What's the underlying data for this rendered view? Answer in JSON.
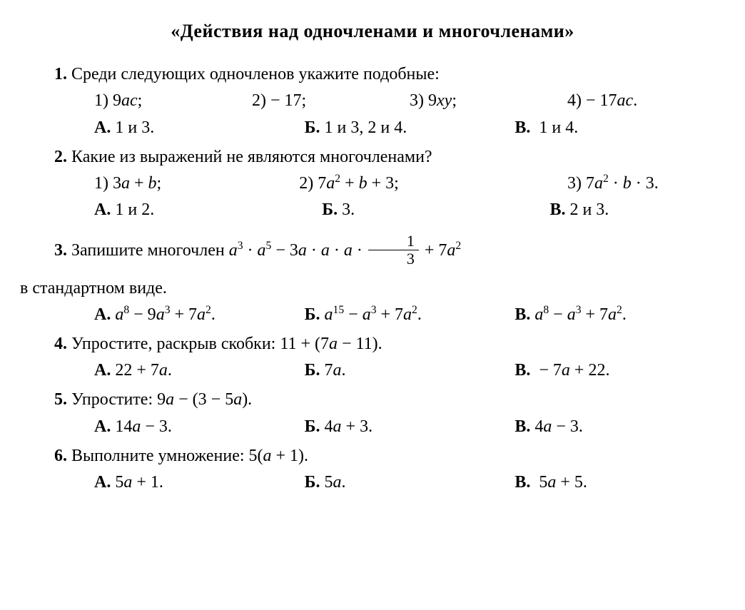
{
  "title": "«Действия над одночленами и многочленами»",
  "q1": {
    "num": "1.",
    "text": "Среди следующих одночленов укажите подобные:",
    "opts": [
      "1) 9<span class='it'>ac</span>;",
      "2) − 17;",
      "3) 9<span class='it'>xy</span>;",
      "4) − 17<span class='it'>ac</span>."
    ],
    "ans": [
      "<span class='bnum'>А.</span> 1 и 3.",
      "<span class='bnum'>Б.</span> 1 и 3, 2 и 4.",
      "<span class='bnum'>В.</span>&nbsp; 1 и 4."
    ]
  },
  "q2": {
    "num": "2.",
    "text": "Какие из выражений не являются многочленами?",
    "opts": [
      "1) 3<span class='it'>a</span> + <span class='it'>b</span>;",
      "2) 7<span class='it'>a</span><sup>2</sup> + <span class='it'>b</span> + 3;",
      "3) 7<span class='it'>a</span><sup>2</sup> · <span class='it'>b</span> · 3."
    ],
    "ans": [
      "<span class='bnum'>А.</span> 1 и 2.",
      "<span class='bnum'>Б.</span> 3.",
      "<span class='bnum'>В.</span> 2 и 3."
    ]
  },
  "q3": {
    "num": "3.",
    "text_a": "Запишите многочлен ",
    "expr": "<span class='it'>a</span><sup>3</sup> · <span class='it'>a</span><sup>5</sup> − 3<span class='it'>a</span> · <span class='it'>a</span> · <span class='it'>a</span> · <span class='fraction'><span class='num'>1</span><span class='den'>3</span></span> + 7<span class='it'>a</span><sup>2</sup>",
    "text_b": "в стандартном виде.",
    "ans": [
      "<span class='bnum'>А.</span> <span class='it'>a</span><sup>8</sup> − 9<span class='it'>a</span><sup>3</sup> + 7<span class='it'>a</span><sup>2</sup>.",
      "<span class='bnum'>Б.</span> <span class='it'>a</span><sup>15</sup> − <span class='it'>a</span><sup>3</sup> + 7<span class='it'>a</span><sup>2</sup>.",
      "<span class='bnum'>В.</span> <span class='it'>a</span><sup>8</sup> − <span class='it'>a</span><sup>3</sup> + 7<span class='it'>a</span><sup>2</sup>."
    ]
  },
  "q4": {
    "num": "4.",
    "text": "Упростите, раскрыв скобки: 11 + (7<span class='it'>a</span> − 11).",
    "ans": [
      "<span class='bnum'>А.</span> 22 + 7<span class='it'>a</span>.",
      "<span class='bnum'>Б.</span> 7<span class='it'>a</span>.",
      "<span class='bnum'>В.</span>&nbsp; − 7<span class='it'>a</span> + 22."
    ]
  },
  "q5": {
    "num": "5.",
    "text": "Упростите: 9<span class='it'>a</span> − (3 − 5<span class='it'>a</span>).",
    "ans": [
      "<span class='bnum'>А.</span> 14<span class='it'>a</span> − 3.",
      "<span class='bnum'>Б.</span> 4<span class='it'>a</span> + 3.",
      "<span class='bnum'>В.</span> 4<span class='it'>a</span> − 3."
    ]
  },
  "q6": {
    "num": "6.",
    "text": "Выполните умножение: 5(<span class='it'>a</span> + 1).",
    "ans": [
      "<span class='bnum'>А.</span> 5<span class='it'>a</span> + 1.",
      "<span class='bnum'>Б.</span> 5<span class='it'>a</span>.",
      "<span class='bnum'>В.</span>&nbsp; 5<span class='it'>a</span> + 5."
    ]
  }
}
